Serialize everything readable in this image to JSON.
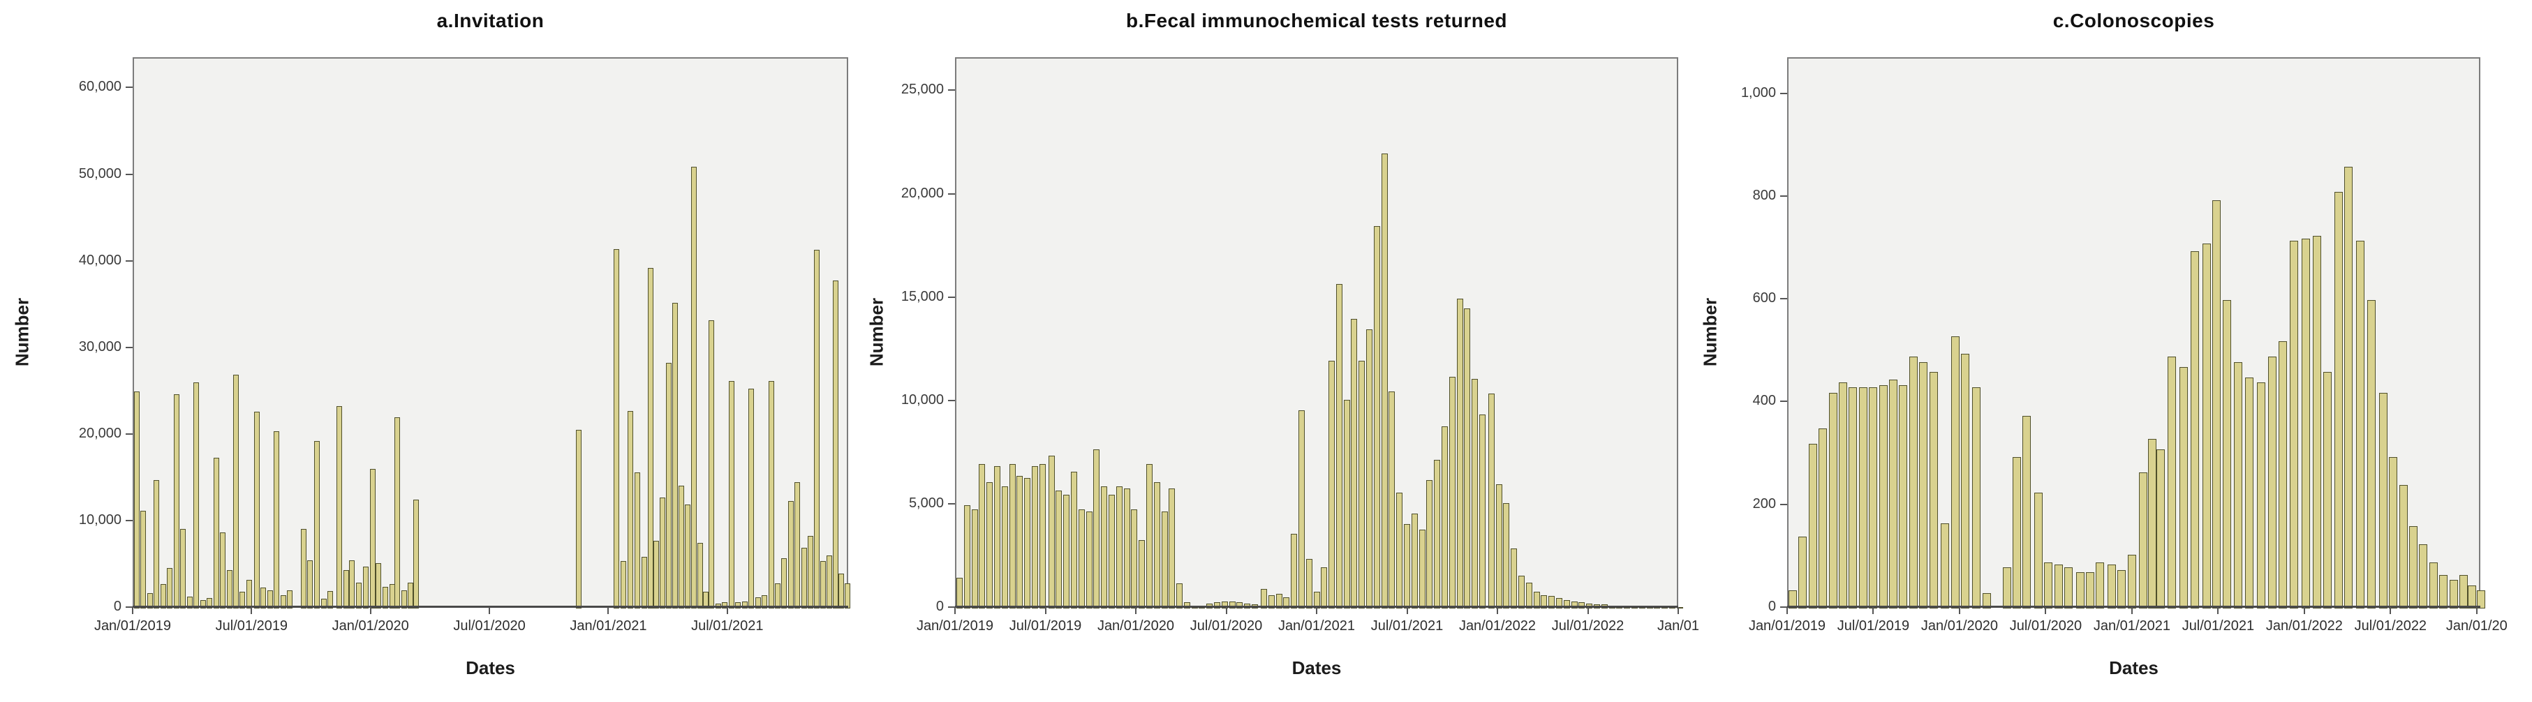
{
  "page": {
    "background": "#ffffff",
    "figure_type": "three-panel SPSS-style bar charts"
  },
  "chart_data": [
    {
      "id": "invitation",
      "type": "bar",
      "title": "a.Invitation",
      "xlabel": "Dates",
      "ylabel": "Number",
      "legend": "none",
      "grid": "off",
      "plot_bg": "#f2f2f0",
      "bar_fill": "#d9d28f",
      "bar_border": "#4f4f2a",
      "x_unit": "months since Jan/01/2019",
      "xlim_months": [
        0,
        36.1
      ],
      "ylim": [
        0,
        63500
      ],
      "yticks": [
        {
          "v": 0,
          "label": "0"
        },
        {
          "v": 10000,
          "label": "10,000"
        },
        {
          "v": 20000,
          "label": "20,000"
        },
        {
          "v": 30000,
          "label": "30,000"
        },
        {
          "v": 40000,
          "label": "40,000"
        },
        {
          "v": 50000,
          "label": "50,000"
        },
        {
          "v": 60000,
          "label": "60,000"
        }
      ],
      "xticks": [
        {
          "m": 0,
          "label": "Jan/01/2019"
        },
        {
          "m": 6,
          "label": "Jul/01/2019"
        },
        {
          "m": 12,
          "label": "Jan/01/2020"
        },
        {
          "m": 18,
          "label": "Jul/01/2020"
        },
        {
          "m": 24,
          "label": "Jan/01/2021"
        },
        {
          "m": 30,
          "label": "Jul/01/2021"
        }
      ],
      "bars": [
        [
          0.0,
          25100
        ],
        [
          0.33,
          11300
        ],
        [
          0.67,
          1800
        ],
        [
          1.0,
          14800
        ],
        [
          1.33,
          2800
        ],
        [
          1.67,
          4700
        ],
        [
          2.0,
          24700
        ],
        [
          2.33,
          9200
        ],
        [
          2.67,
          1400
        ],
        [
          3.0,
          26100
        ],
        [
          3.33,
          1000
        ],
        [
          3.67,
          1200
        ],
        [
          4.0,
          17400
        ],
        [
          4.33,
          8800
        ],
        [
          4.67,
          4400
        ],
        [
          5.0,
          27000
        ],
        [
          5.33,
          1900
        ],
        [
          5.67,
          3300
        ],
        [
          6.05,
          22700
        ],
        [
          6.38,
          2400
        ],
        [
          6.71,
          2100
        ],
        [
          7.05,
          20500
        ],
        [
          7.38,
          1500
        ],
        [
          7.71,
          2100
        ],
        [
          8.4,
          9200
        ],
        [
          8.73,
          5600
        ],
        [
          9.1,
          19300
        ],
        [
          9.43,
          1100
        ],
        [
          9.76,
          2000
        ],
        [
          10.2,
          23400
        ],
        [
          10.55,
          4400
        ],
        [
          10.85,
          5600
        ],
        [
          11.2,
          3000
        ],
        [
          11.55,
          4800
        ],
        [
          11.9,
          16100
        ],
        [
          12.2,
          5200
        ],
        [
          12.55,
          2500
        ],
        [
          12.9,
          2800
        ],
        [
          13.15,
          22100
        ],
        [
          13.5,
          2100
        ],
        [
          13.8,
          3000
        ],
        [
          14.1,
          12600
        ],
        [
          22.3,
          20600
        ],
        [
          24.2,
          41500
        ],
        [
          24.55,
          5500
        ],
        [
          24.9,
          22800
        ],
        [
          25.25,
          15700
        ],
        [
          25.6,
          6000
        ],
        [
          25.92,
          39300
        ],
        [
          26.22,
          7800
        ],
        [
          26.52,
          12800
        ],
        [
          26.85,
          28400
        ],
        [
          27.15,
          35300
        ],
        [
          27.48,
          14200
        ],
        [
          27.78,
          12000
        ],
        [
          28.1,
          51000
        ],
        [
          28.42,
          7600
        ],
        [
          28.7,
          1900
        ],
        [
          29.0,
          33300
        ],
        [
          29.33,
          600
        ],
        [
          29.66,
          700
        ],
        [
          30.0,
          26300
        ],
        [
          30.33,
          700
        ],
        [
          30.66,
          800
        ],
        [
          31.0,
          25400
        ],
        [
          31.33,
          1300
        ],
        [
          31.66,
          1500
        ],
        [
          32.0,
          26300
        ],
        [
          32.33,
          2900
        ],
        [
          32.66,
          5800
        ],
        [
          33.0,
          12400
        ],
        [
          33.33,
          14600
        ],
        [
          33.66,
          7000
        ],
        [
          34.0,
          8400
        ],
        [
          34.3,
          41400
        ],
        [
          34.63,
          5500
        ],
        [
          34.95,
          6100
        ],
        [
          35.25,
          37900
        ],
        [
          35.55,
          4000
        ],
        [
          35.85,
          2900
        ]
      ]
    },
    {
      "id": "fit-returned",
      "type": "bar",
      "title": "b.Fecal immunochemical tests returned",
      "xlabel": "Dates",
      "ylabel": "Number",
      "legend": "none",
      "grid": "off",
      "plot_bg": "#f2f2f0",
      "bar_fill": "#d9d28f",
      "bar_border": "#4f4f2a",
      "x_unit": "months since Jan/01/2019",
      "xlim_months": [
        0,
        48
      ],
      "ylim": [
        0,
        26600
      ],
      "yticks": [
        {
          "v": 0,
          "label": "0"
        },
        {
          "v": 5000,
          "label": "5,000"
        },
        {
          "v": 10000,
          "label": "10,000"
        },
        {
          "v": 15000,
          "label": "15,000"
        },
        {
          "v": 20000,
          "label": "20,000"
        },
        {
          "v": 25000,
          "label": "25,000"
        }
      ],
      "xticks": [
        {
          "m": 0,
          "label": "Jan/01/2019"
        },
        {
          "m": 6,
          "label": "Jul/01/2019"
        },
        {
          "m": 12,
          "label": "Jan/01/2020"
        },
        {
          "m": 18,
          "label": "Jul/01/2020"
        },
        {
          "m": 24,
          "label": "Jan/01/2021"
        },
        {
          "m": 30,
          "label": "Jul/01/2021"
        },
        {
          "m": 36,
          "label": "Jan/01/2022"
        },
        {
          "m": 42,
          "label": "Jul/01/2022"
        },
        {
          "m": 48,
          "label": "Jan/01"
        }
      ],
      "bars": [
        [
          0.0,
          1500
        ],
        [
          0.5,
          5000
        ],
        [
          1.0,
          4800
        ],
        [
          1.5,
          7000
        ],
        [
          2.0,
          6100
        ],
        [
          2.5,
          6900
        ],
        [
          3.0,
          5900
        ],
        [
          3.5,
          7000
        ],
        [
          4.0,
          6400
        ],
        [
          4.5,
          6300
        ],
        [
          5.0,
          6900
        ],
        [
          5.5,
          7000
        ],
        [
          6.1,
          7400
        ],
        [
          6.6,
          5700
        ],
        [
          7.1,
          5500
        ],
        [
          7.6,
          6600
        ],
        [
          8.1,
          4800
        ],
        [
          8.6,
          4700
        ],
        [
          9.1,
          7700
        ],
        [
          9.6,
          5900
        ],
        [
          10.1,
          5500
        ],
        [
          10.6,
          5900
        ],
        [
          11.1,
          5800
        ],
        [
          11.6,
          4800
        ],
        [
          12.1,
          3300
        ],
        [
          12.6,
          7000
        ],
        [
          13.1,
          6100
        ],
        [
          13.6,
          4700
        ],
        [
          14.1,
          5800
        ],
        [
          14.6,
          1200
        ],
        [
          15.1,
          300
        ],
        [
          15.6,
          150
        ],
        [
          16.1,
          150
        ],
        [
          16.6,
          250
        ],
        [
          17.1,
          300
        ],
        [
          17.6,
          350
        ],
        [
          18.1,
          350
        ],
        [
          18.6,
          300
        ],
        [
          19.1,
          250
        ],
        [
          19.6,
          200
        ],
        [
          20.2,
          950
        ],
        [
          20.7,
          650
        ],
        [
          21.2,
          700
        ],
        [
          21.7,
          550
        ],
        [
          22.2,
          3600
        ],
        [
          22.7,
          9600
        ],
        [
          23.2,
          2400
        ],
        [
          23.7,
          800
        ],
        [
          24.2,
          2000
        ],
        [
          24.7,
          12000
        ],
        [
          25.2,
          15700
        ],
        [
          25.7,
          10100
        ],
        [
          26.2,
          14000
        ],
        [
          26.7,
          12000
        ],
        [
          27.2,
          13500
        ],
        [
          27.7,
          18500
        ],
        [
          28.2,
          22000
        ],
        [
          28.7,
          10500
        ],
        [
          29.2,
          5600
        ],
        [
          29.7,
          4100
        ],
        [
          30.2,
          4600
        ],
        [
          30.7,
          3800
        ],
        [
          31.2,
          6200
        ],
        [
          31.7,
          7200
        ],
        [
          32.2,
          8800
        ],
        [
          32.7,
          11200
        ],
        [
          33.2,
          15000
        ],
        [
          33.7,
          14500
        ],
        [
          34.2,
          11100
        ],
        [
          34.7,
          9400
        ],
        [
          35.3,
          10400
        ],
        [
          35.8,
          6000
        ],
        [
          36.3,
          5100
        ],
        [
          36.8,
          2900
        ],
        [
          37.3,
          1600
        ],
        [
          37.8,
          1250
        ],
        [
          38.3,
          800
        ],
        [
          38.8,
          650
        ],
        [
          39.3,
          600
        ],
        [
          39.8,
          500
        ],
        [
          40.3,
          400
        ],
        [
          40.8,
          350
        ],
        [
          41.3,
          300
        ],
        [
          41.8,
          250
        ],
        [
          42.3,
          200
        ],
        [
          42.8,
          200
        ],
        [
          43.3,
          150
        ],
        [
          43.8,
          150
        ],
        [
          44.3,
          150
        ],
        [
          44.8,
          100
        ],
        [
          45.3,
          100
        ],
        [
          45.8,
          100
        ],
        [
          46.3,
          100
        ],
        [
          46.8,
          100
        ],
        [
          47.3,
          80
        ],
        [
          47.8,
          80
        ]
      ]
    },
    {
      "id": "colonoscopies",
      "type": "bar",
      "title": "c.Colonoscopies",
      "xlabel": "Dates",
      "ylabel": "Number",
      "legend": "none",
      "grid": "off",
      "plot_bg": "#f2f2f0",
      "bar_fill": "#d9d28f",
      "bar_border": "#4f4f2a",
      "x_unit": "months since Jan/01/2019",
      "xlim_months": [
        0,
        48.25
      ],
      "ylim": [
        0,
        1070
      ],
      "yticks": [
        {
          "v": 0,
          "label": "0"
        },
        {
          "v": 200,
          "label": "200"
        },
        {
          "v": 400,
          "label": "400"
        },
        {
          "v": 600,
          "label": "600"
        },
        {
          "v": 800,
          "label": "800"
        },
        {
          "v": 1000,
          "label": "1,000"
        }
      ],
      "xticks": [
        {
          "m": 0,
          "label": "Jan/01/2019"
        },
        {
          "m": 6,
          "label": "Jul/01/2019"
        },
        {
          "m": 12,
          "label": "Jan/01/2020"
        },
        {
          "m": 18,
          "label": "Jul/01/2020"
        },
        {
          "m": 24,
          "label": "Jan/01/2021"
        },
        {
          "m": 30,
          "label": "Jul/01/2021"
        },
        {
          "m": 36,
          "label": "Jan/01/2022"
        },
        {
          "m": 42,
          "label": "Jul/01/2022"
        },
        {
          "m": 48,
          "label": "Jan/01/20"
        }
      ],
      "bars": [
        [
          0.0,
          35
        ],
        [
          0.7,
          140
        ],
        [
          1.4,
          320
        ],
        [
          2.1,
          350
        ],
        [
          2.8,
          420
        ],
        [
          3.5,
          440
        ],
        [
          4.2,
          430
        ],
        [
          4.9,
          430
        ],
        [
          5.6,
          430
        ],
        [
          6.3,
          435
        ],
        [
          7.0,
          445
        ],
        [
          7.7,
          435
        ],
        [
          8.4,
          490
        ],
        [
          9.1,
          480
        ],
        [
          9.8,
          460
        ],
        [
          10.6,
          165
        ],
        [
          11.3,
          530
        ],
        [
          12.0,
          495
        ],
        [
          12.8,
          430
        ],
        [
          13.5,
          30
        ],
        [
          14.9,
          80
        ],
        [
          15.6,
          295
        ],
        [
          16.3,
          375
        ],
        [
          17.1,
          225
        ],
        [
          17.8,
          90
        ],
        [
          18.5,
          85
        ],
        [
          19.2,
          80
        ],
        [
          20.0,
          70
        ],
        [
          20.7,
          70
        ],
        [
          21.4,
          90
        ],
        [
          22.2,
          85
        ],
        [
          22.9,
          75
        ],
        [
          23.6,
          105
        ],
        [
          24.4,
          265
        ],
        [
          25.0,
          330
        ],
        [
          25.6,
          310
        ],
        [
          26.4,
          490
        ],
        [
          27.2,
          470
        ],
        [
          28.0,
          695
        ],
        [
          28.8,
          710
        ],
        [
          29.5,
          795
        ],
        [
          30.2,
          600
        ],
        [
          31.0,
          480
        ],
        [
          31.8,
          450
        ],
        [
          32.6,
          440
        ],
        [
          33.4,
          490
        ],
        [
          34.1,
          520
        ],
        [
          34.9,
          715
        ],
        [
          35.7,
          720
        ],
        [
          36.5,
          725
        ],
        [
          37.2,
          460
        ],
        [
          38.0,
          810
        ],
        [
          38.7,
          860
        ],
        [
          39.5,
          715
        ],
        [
          40.3,
          600
        ],
        [
          41.1,
          420
        ],
        [
          41.8,
          295
        ],
        [
          42.5,
          240
        ],
        [
          43.2,
          160
        ],
        [
          43.9,
          125
        ],
        [
          44.6,
          90
        ],
        [
          45.3,
          65
        ],
        [
          46.0,
          55
        ],
        [
          46.7,
          65
        ],
        [
          47.3,
          45
        ],
        [
          47.9,
          35
        ]
      ]
    }
  ]
}
